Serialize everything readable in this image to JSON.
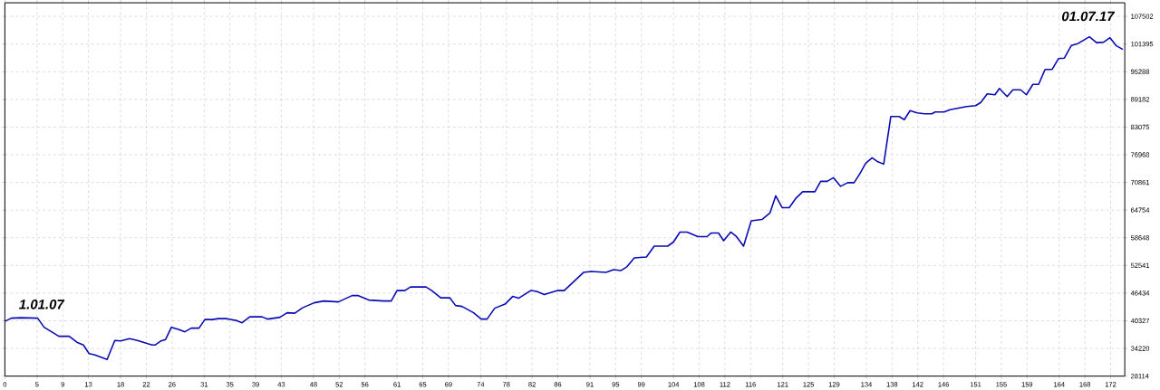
{
  "chart_data": {
    "type": "line",
    "x": [
      0,
      1,
      2.5,
      5.1,
      6.1,
      8.4,
      10,
      11.2,
      12.2,
      13.1,
      14,
      15.9,
      17.1,
      18,
      19.4,
      20.6,
      22.9,
      23.4,
      24.3,
      25,
      25.9,
      27.1,
      28,
      29,
      30.2,
      31.1,
      32.3,
      33.2,
      34.4,
      36,
      36.9,
      38.1,
      40,
      40.9,
      42.8,
      43.9,
      45.1,
      46.3,
      48.1,
      49.6,
      51.9,
      54,
      54.9,
      56.6,
      58.9,
      60.1,
      61,
      62.2,
      63.1,
      65.5,
      66.4,
      67.8,
      69.2,
      70.1,
      71.1,
      72.9,
      74.1,
      75,
      76.2,
      77.8,
      79,
      79.9,
      81.8,
      82.7,
      83.9,
      86,
      87,
      90,
      91.2,
      93.5,
      94.7,
      95.8,
      96.8,
      97.9,
      99.8,
      101,
      103.1,
      104,
      105,
      106.1,
      107.8,
      109.2,
      109.9,
      111,
      111.8,
      112.9,
      113.8,
      114.9,
      116.1,
      117.8,
      119,
      119.9,
      120.9,
      122,
      123,
      124.1,
      126,
      126.9,
      127.9,
      128.9,
      130,
      131.1,
      132.1,
      133,
      133.9,
      134.9,
      135.8,
      136.7,
      137.8,
      139.1,
      139.9,
      140.8,
      141.9,
      143.1,
      144.2,
      144.7,
      146.1,
      147,
      149.6,
      151,
      151.8,
      152.8,
      154,
      154.7,
      155.9,
      156.8,
      158,
      158.9,
      159.9,
      160.8,
      161.8,
      162.9,
      163.9,
      164.8,
      165.9,
      166.9,
      168.7,
      169.8,
      170.9,
      171.9,
      172.9,
      173.9
    ],
    "series": [
      {
        "color": "#0a0ab4",
        "values": [
          40200,
          40900,
          41000,
          40900,
          38900,
          36900,
          36900,
          35600,
          35000,
          33100,
          32800,
          31800,
          36000,
          35900,
          36400,
          36000,
          35000,
          35000,
          35900,
          36200,
          38900,
          38400,
          37900,
          38700,
          38700,
          40600,
          40600,
          40800,
          40800,
          40400,
          39900,
          41200,
          41200,
          40700,
          41100,
          42100,
          42000,
          43200,
          44300,
          44700,
          44500,
          45900,
          45900,
          44900,
          44700,
          44700,
          47000,
          47000,
          47800,
          47800,
          47000,
          45400,
          45400,
          43700,
          43500,
          42100,
          40700,
          40700,
          43100,
          44000,
          45700,
          45300,
          47000,
          46800,
          46100,
          47000,
          47000,
          51000,
          51200,
          51000,
          51600,
          51400,
          52300,
          54200,
          54400,
          56800,
          56800,
          57700,
          59900,
          59900,
          58900,
          58900,
          59700,
          59700,
          58000,
          59900,
          58900,
          56800,
          62400,
          62700,
          64100,
          67900,
          65300,
          65300,
          67300,
          68800,
          68800,
          71100,
          71100,
          71900,
          70000,
          70800,
          70800,
          72800,
          75100,
          76300,
          75400,
          74900,
          85400,
          85400,
          84700,
          86700,
          86200,
          86000,
          86000,
          86400,
          86400,
          86900,
          87600,
          87800,
          88500,
          90400,
          90200,
          91600,
          89800,
          91300,
          91300,
          90200,
          92500,
          92500,
          95800,
          95800,
          98200,
          98300,
          101100,
          101500,
          103000,
          101700,
          101800,
          102800,
          101000,
          100200
        ]
      }
    ],
    "xlim": [
      0,
      174.2
    ],
    "xticks": [
      0,
      5,
      9,
      13,
      18,
      22,
      26,
      31,
      35,
      39,
      43,
      48,
      52,
      56,
      61,
      65,
      69,
      74,
      78,
      82,
      86,
      91,
      95,
      99,
      104,
      108,
      112,
      116,
      121,
      125,
      129,
      134,
      138,
      142,
      146,
      151,
      155,
      159,
      164,
      168,
      172
    ],
    "ylim": [
      28114,
      110500
    ],
    "yticks": [
      28114,
      34220,
      40327,
      46434,
      52541,
      58648,
      64754,
      70861,
      76968,
      83075,
      89182,
      95288,
      101395,
      107502
    ],
    "grid": true,
    "annotations": [
      {
        "text": "1.01.07",
        "x": 0,
        "y": 40200
      },
      {
        "text": "01.07.17",
        "x": 173.9,
        "y": 100200
      }
    ]
  }
}
